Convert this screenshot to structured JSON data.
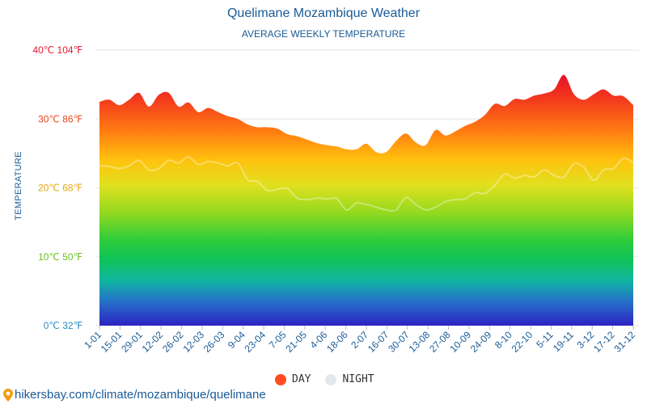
{
  "header": {
    "title": "Quelimane Mozambique Weather",
    "subtitle": "AVERAGE WEEKLY TEMPERATURE"
  },
  "source_text": "hikersbay.com/climate/mozambique/quelimane",
  "chart_data": {
    "type": "area",
    "title": "Quelimane Mozambique Weather",
    "subtitle": "AVERAGE WEEKLY TEMPERATURE",
    "ylabel": "TEMPERATURE",
    "xlabel": "",
    "ylim": [
      0,
      40
    ],
    "y_ticks": [
      {
        "value": 40,
        "label": "40℃ 104℉",
        "color": "#e6162d"
      },
      {
        "value": 30,
        "label": "30℃ 86℉",
        "color": "#e8471c"
      },
      {
        "value": 20,
        "label": "20℃ 68℉",
        "color": "#e4a612"
      },
      {
        "value": 10,
        "label": "10℃ 50℉",
        "color": "#6bbf22"
      },
      {
        "value": 0,
        "label": "0℃ 32℉",
        "color": "#2d8cc0"
      }
    ],
    "x_tick_labels": [
      "1-01",
      "15-01",
      "29-01",
      "12-02",
      "26-02",
      "12-03",
      "26-03",
      "9-04",
      "23-04",
      "7-05",
      "21-05",
      "4-06",
      "18-06",
      "2-07",
      "16-07",
      "30-07",
      "13-08",
      "27-08",
      "10-09",
      "24-09",
      "8-10",
      "22-10",
      "5-11",
      "19-11",
      "3-12",
      "17-12",
      "31-12"
    ],
    "grid": "horizontal",
    "legend_position": "bottom-center",
    "series": [
      {
        "name": "DAY",
        "color": "#ff4b1f",
        "values": [
          32.5,
          32.8,
          32.0,
          32.8,
          33.8,
          31.8,
          33.5,
          33.8,
          31.8,
          32.4,
          31.0,
          31.6,
          31.0,
          30.4,
          30.0,
          29.2,
          28.8,
          28.8,
          28.6,
          27.8,
          27.5,
          27.0,
          26.5,
          26.2,
          26.0,
          25.6,
          25.6,
          26.4,
          25.2,
          25.2,
          26.8,
          27.9,
          26.6,
          26.2,
          28.4,
          27.6,
          28.2,
          29.0,
          29.6,
          30.6,
          32.2,
          31.9,
          32.9,
          32.8,
          33.4,
          33.7,
          34.3,
          36.4,
          33.6,
          32.8,
          33.6,
          34.3,
          33.4,
          33.3,
          32.0
        ]
      },
      {
        "name": "NIGHT",
        "color": "#e3e8ee",
        "values": [
          23.2,
          23.1,
          22.8,
          23.2,
          24.0,
          22.6,
          22.8,
          24.0,
          23.6,
          24.5,
          23.4,
          23.8,
          23.6,
          23.2,
          23.6,
          21.2,
          20.9,
          19.6,
          19.8,
          19.9,
          18.5,
          18.3,
          18.5,
          18.4,
          18.4,
          16.8,
          17.8,
          17.6,
          17.2,
          16.8,
          16.8,
          18.6,
          17.6,
          16.8,
          17.2,
          18.0,
          18.3,
          18.4,
          19.3,
          19.2,
          20.4,
          22.0,
          21.4,
          21.8,
          21.6,
          22.6,
          21.8,
          21.6,
          23.5,
          23.0,
          21.1,
          22.6,
          22.8,
          24.3,
          23.6
        ]
      }
    ]
  }
}
